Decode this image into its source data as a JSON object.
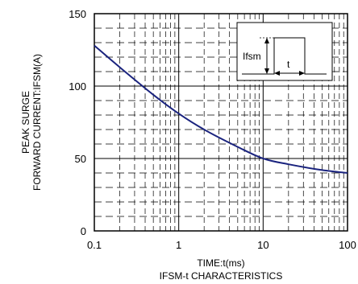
{
  "chart_data": {
    "type": "line",
    "title": "IFSM-t CHARACTERISTICS",
    "xlabel": "TIME:t(ms)",
    "ylabel": [
      "PEAK SURGE",
      "FORWARD CURRENT:IFSM(A)"
    ],
    "xscale": "log",
    "xlim": [
      0.1,
      100
    ],
    "ylim": [
      0,
      150
    ],
    "x_ticks": [
      0.1,
      1,
      10,
      100
    ],
    "x_tick_labels": [
      "0.1",
      "1",
      "10",
      "100"
    ],
    "y_ticks": [
      0,
      50,
      100,
      150
    ],
    "y_tick_labels": [
      "0",
      "50",
      "100",
      "150"
    ],
    "grid": true,
    "series": [
      {
        "color": "#1a237e",
        "x": [
          0.1,
          0.2,
          0.5,
          1,
          2,
          5,
          10,
          20,
          50,
          100
        ],
        "y": [
          128,
          113,
          94,
          81,
          70,
          58,
          50,
          46,
          42,
          40
        ]
      }
    ],
    "inset": {
      "current_label": "Ifsm",
      "time_label": "t"
    }
  }
}
